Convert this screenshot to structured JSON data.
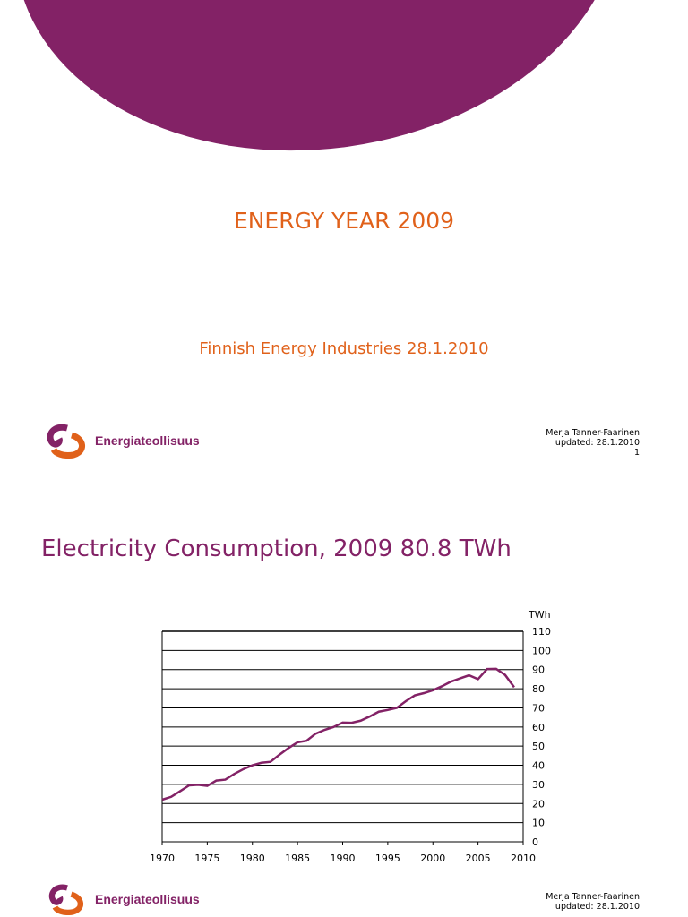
{
  "slide1": {
    "title": "ENERGY YEAR 2009",
    "subtitle": "Finnish Energy Industries 28.1.2010",
    "logo_text": "Energiateollisuus",
    "author": "Merja Tanner-Faarinen",
    "updated": "updated: 28.1.2010",
    "page": "1"
  },
  "slide2": {
    "title": "Electricity Consumption, 2009 80.8 TWh",
    "logo_text": "Energiateollisuus",
    "author": "Merja Tanner-Faarinen",
    "updated": "updated: 28.1.2010"
  },
  "colors": {
    "brand_purple": "#832266",
    "brand_orange": "#e0611a"
  },
  "chart_data": {
    "type": "line",
    "title": "",
    "xlabel": "",
    "ylabel": "TWh",
    "xlim": [
      1970,
      2010
    ],
    "ylim": [
      0,
      110
    ],
    "grid": true,
    "xticks": [
      1970,
      1975,
      1980,
      1985,
      1990,
      1995,
      2000,
      2005,
      2010
    ],
    "yticks": [
      0,
      10,
      20,
      30,
      40,
      50,
      60,
      70,
      80,
      90,
      100,
      110
    ],
    "x": [
      1970,
      1971,
      1972,
      1973,
      1974,
      1975,
      1976,
      1977,
      1978,
      1979,
      1980,
      1981,
      1982,
      1983,
      1984,
      1985,
      1986,
      1987,
      1988,
      1989,
      1990,
      1991,
      1992,
      1993,
      1994,
      1995,
      1996,
      1997,
      1998,
      1999,
      2000,
      2001,
      2002,
      2003,
      2004,
      2005,
      2006,
      2007,
      2008,
      2009
    ],
    "y": [
      22,
      23.5,
      26.5,
      29.5,
      29.8,
      29.2,
      32,
      32.5,
      35.5,
      38,
      40,
      41.3,
      41.8,
      45.5,
      49,
      52,
      52.8,
      56.5,
      58.5,
      60,
      62.3,
      62.2,
      63.3,
      65.5,
      68,
      68.9,
      70,
      73.5,
      76.5,
      77.7,
      79.2,
      81.3,
      83.7,
      85.4,
      87,
      85,
      90.3,
      90.4,
      87.2,
      80.8
    ],
    "line_color": "#832266"
  }
}
